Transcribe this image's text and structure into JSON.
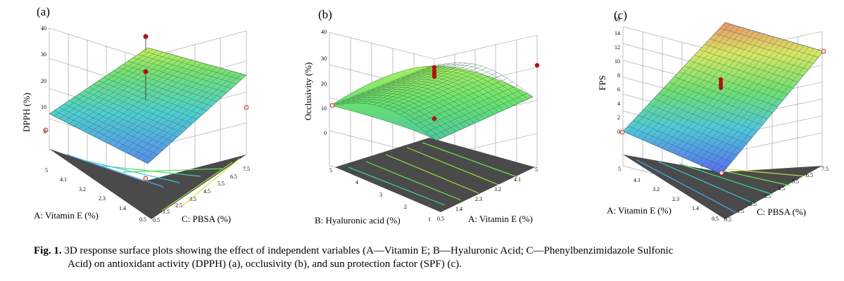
{
  "figure": {
    "caption_number": "Fig. 1.",
    "caption_line1": "3D response surface plots showing the effect of independent variables (A—Vitamin E; B—Hyaluronic Acid; C—Phenylbenzimidazole Sulfonic",
    "caption_line2": "Acid) on antioxidant activity (DPPH) (a), occlusivity (b), and sun protection factor (SPF) (c).",
    "colors": {
      "surface_low": "#5a6cf0",
      "surface_mid": "#6ee06e",
      "surface_high": "#f0926a",
      "floor": "#4a4a4a",
      "design_point": "#b01010"
    }
  },
  "chart_data": [
    {
      "type": "surface3d",
      "panel_label": "(a)",
      "zlabel": "DPPH (%)",
      "xlabel": "C: PBSA (%)",
      "ylabel": "A: Vitamin E (%)",
      "z_ticks": [
        "0",
        "10",
        "20",
        "30",
        "40"
      ],
      "x_ticks": [
        "0.5",
        "1.5",
        "2.5",
        "3.5",
        "4.5",
        "5.5",
        "6.5",
        "7.5"
      ],
      "y_ticks": [
        "0.5",
        "1.4",
        "2.3",
        "3.2",
        "4.1",
        "5"
      ],
      "zlim": [
        0,
        40
      ],
      "surface_corners": {
        "low_vitE_low_pbsa": 5,
        "high_vitE_low_pbsa": 11,
        "low_vitE_high_pbsa": 22,
        "high_vitE_high_pbsa": 29
      },
      "design_points": [
        {
          "z": 38,
          "above_surface": true
        },
        {
          "z": 26,
          "above_surface": true
        },
        {
          "z": 0,
          "above_surface": false
        },
        {
          "z": 2,
          "above_surface": false
        },
        {
          "z": 10,
          "above_surface": false
        }
      ]
    },
    {
      "type": "surface3d",
      "panel_label": "(b)",
      "zlabel": "Occlusivity (%)",
      "xlabel": "A: Vitamin E (%)",
      "ylabel": "B: Hyaluronic acid (%)",
      "z_ticks": [
        "0",
        "10",
        "20",
        "30",
        "40"
      ],
      "x_ticks": [
        "0.5",
        "1.4",
        "2.3",
        "3.2",
        "4.1",
        "5"
      ],
      "y_ticks": [
        "1",
        "2",
        "3",
        "4",
        "5"
      ],
      "zlim": [
        0,
        40
      ],
      "surface_shape": "dome, peak about 26 near mid Vitamin E, edges about 13-14",
      "design_points": [
        {
          "z": 27,
          "above_surface": true
        },
        {
          "z": 26,
          "above_surface": true
        },
        {
          "z": 25,
          "above_surface": true
        },
        {
          "z": 24,
          "above_surface": true
        },
        {
          "z": 12,
          "above_surface": false
        },
        {
          "z": 28,
          "above_surface": true
        },
        {
          "z": 11,
          "above_surface": false
        }
      ]
    },
    {
      "type": "surface3d",
      "panel_label": "(c)",
      "zlabel": "FPS",
      "xlabel": "C: PBSA (%)",
      "ylabel": "A: Vitamin E (%)",
      "z_ticks": [
        "0",
        "2",
        "4",
        "6",
        "8",
        "10",
        "12",
        "14",
        "16"
      ],
      "x_ticks": [
        "0.5",
        "1.5",
        "2.5",
        "3.5",
        "4.5",
        "5.5",
        "6.5",
        "7.5"
      ],
      "y_ticks": [
        "0.5",
        "1.4",
        "2.3",
        "3.2",
        "4.1",
        "5"
      ],
      "zlim": [
        0,
        16
      ],
      "surface_corners": {
        "low_vitE_low_pbsa": 0,
        "high_vitE_low_pbsa": 1,
        "low_vitE_high_pbsa": 13,
        "high_vitE_high_pbsa": 15
      },
      "design_points": [
        {
          "z": 8,
          "above_surface": false
        },
        {
          "z": 7.6,
          "above_surface": false
        },
        {
          "z": 7.3,
          "above_surface": false
        },
        {
          "z": 7,
          "above_surface": false
        },
        {
          "z": 0,
          "above_surface": false
        },
        {
          "z": 0,
          "above_surface": false
        },
        {
          "z": 14,
          "above_surface": false
        }
      ]
    }
  ]
}
